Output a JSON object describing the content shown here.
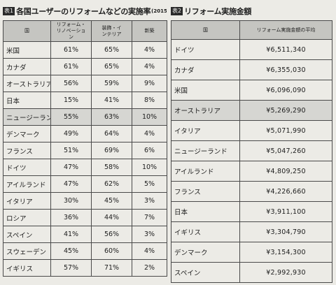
{
  "table1": {
    "tag": "表1",
    "title": "各国ユーザーのリフォームなどの実施率",
    "title_note": "(2015)",
    "headers": [
      "国",
      "リフォーム・リノベーション",
      "装飾・インテリア",
      "新築"
    ],
    "rows": [
      {
        "country": "米国",
        "reform": "61%",
        "decor": "65%",
        "new": "4%",
        "shaded": false
      },
      {
        "country": "カナダ",
        "reform": "61%",
        "decor": "65%",
        "new": "4%",
        "shaded": false
      },
      {
        "country": "オーストラリア",
        "reform": "56%",
        "decor": "59%",
        "new": "9%",
        "shaded": false
      },
      {
        "country": "日本",
        "reform": "15%",
        "decor": "41%",
        "new": "8%",
        "shaded": false
      },
      {
        "country": "ニュージーランド",
        "reform": "55%",
        "decor": "63%",
        "new": "10%",
        "shaded": true
      },
      {
        "country": "デンマーク",
        "reform": "49%",
        "decor": "64%",
        "new": "4%",
        "shaded": false
      },
      {
        "country": "フランス",
        "reform": "51%",
        "decor": "69%",
        "new": "6%",
        "shaded": false
      },
      {
        "country": "ドイツ",
        "reform": "47%",
        "decor": "58%",
        "new": "10%",
        "shaded": false
      },
      {
        "country": "アイルランド",
        "reform": "47%",
        "decor": "62%",
        "new": "5%",
        "shaded": false
      },
      {
        "country": "イタリア",
        "reform": "30%",
        "decor": "45%",
        "new": "3%",
        "shaded": false
      },
      {
        "country": "ロシア",
        "reform": "36%",
        "decor": "44%",
        "new": "7%",
        "shaded": false
      },
      {
        "country": "スペイン",
        "reform": "41%",
        "decor": "56%",
        "new": "3%",
        "shaded": false
      },
      {
        "country": "スウェーデン",
        "reform": "45%",
        "decor": "60%",
        "new": "4%",
        "shaded": false
      },
      {
        "country": "イギリス",
        "reform": "57%",
        "decor": "71%",
        "new": "2%",
        "shaded": false
      }
    ]
  },
  "table2": {
    "tag": "表2",
    "title": "リフォーム実施金額",
    "headers": [
      "国",
      "リフォーム実施金額の平均"
    ],
    "rows": [
      {
        "country": "ドイツ",
        "amount": "¥6,511,340",
        "shaded": false
      },
      {
        "country": "カナダ",
        "amount": "¥6,355,030",
        "shaded": false
      },
      {
        "country": "米国",
        "amount": "¥6,096,090",
        "shaded": false
      },
      {
        "country": "オーストラリア",
        "amount": "¥5,269,290",
        "shaded": true
      },
      {
        "country": "イタリア",
        "amount": "¥5,071,990",
        "shaded": false
      },
      {
        "country": "ニュージーランド",
        "amount": "¥5,047,260",
        "shaded": false
      },
      {
        "country": "アイルランド",
        "amount": "¥4,809,250",
        "shaded": false
      },
      {
        "country": "フランス",
        "amount": "¥4,226,660",
        "shaded": false
      },
      {
        "country": "日本",
        "amount": "¥3,911,100",
        "shaded": false
      },
      {
        "country": "イギリス",
        "amount": "¥3,304,790",
        "shaded": false
      },
      {
        "country": "デンマーク",
        "amount": "¥3,154,300",
        "shaded": false
      },
      {
        "country": "スペイン",
        "amount": "¥2,992,930",
        "shaded": false
      }
    ]
  }
}
